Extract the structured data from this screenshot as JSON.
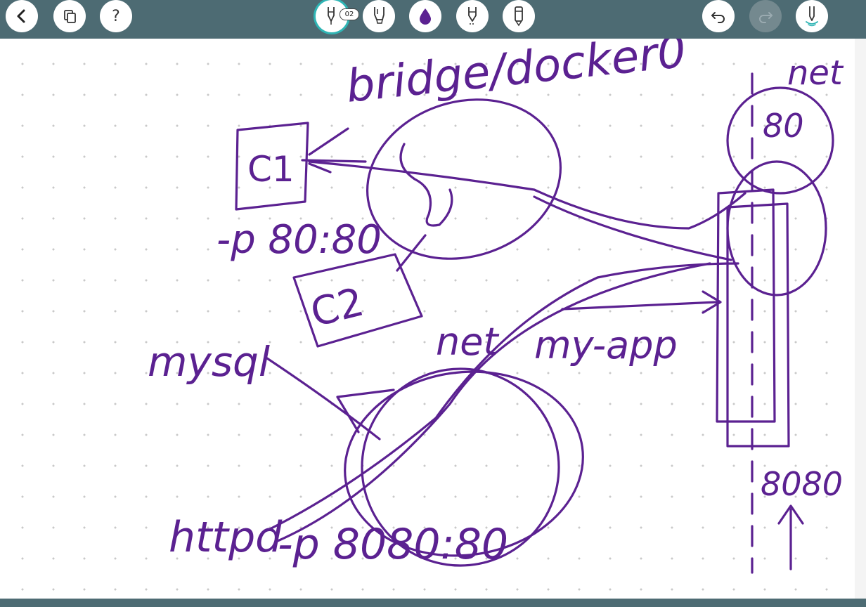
{
  "toolbar": {
    "left_buttons": [
      {
        "icon": "back-arrow-icon"
      },
      {
        "icon": "pages-icon"
      },
      {
        "icon": "help-icon",
        "glyph": "?"
      }
    ],
    "tools": [
      {
        "icon": "pen-tool-icon",
        "badge": "02",
        "selected": true
      },
      {
        "icon": "highlighter-tool-icon"
      },
      {
        "icon": "color-drop-icon",
        "color": "#5b2191"
      },
      {
        "icon": "eraser-tool-icon"
      },
      {
        "icon": "lasso-tool-icon"
      }
    ],
    "right_buttons": [
      {
        "icon": "undo-icon",
        "enabled": true
      },
      {
        "icon": "redo-icon",
        "enabled": false
      },
      {
        "icon": "stylus-icon"
      }
    ]
  },
  "canvas": {
    "ink_color": "#5b2191",
    "handwriting": {
      "bridge": "bridge/docker0",
      "c1": "C1",
      "port1": "-p 80:80",
      "c2": "C2",
      "mysql": "mysql",
      "net": "net",
      "myapp": "my-app",
      "httpd": "httpd",
      "port2": "-p 8080:80",
      "net_right": "net",
      "p80": "80",
      "p8080": "8080"
    }
  }
}
